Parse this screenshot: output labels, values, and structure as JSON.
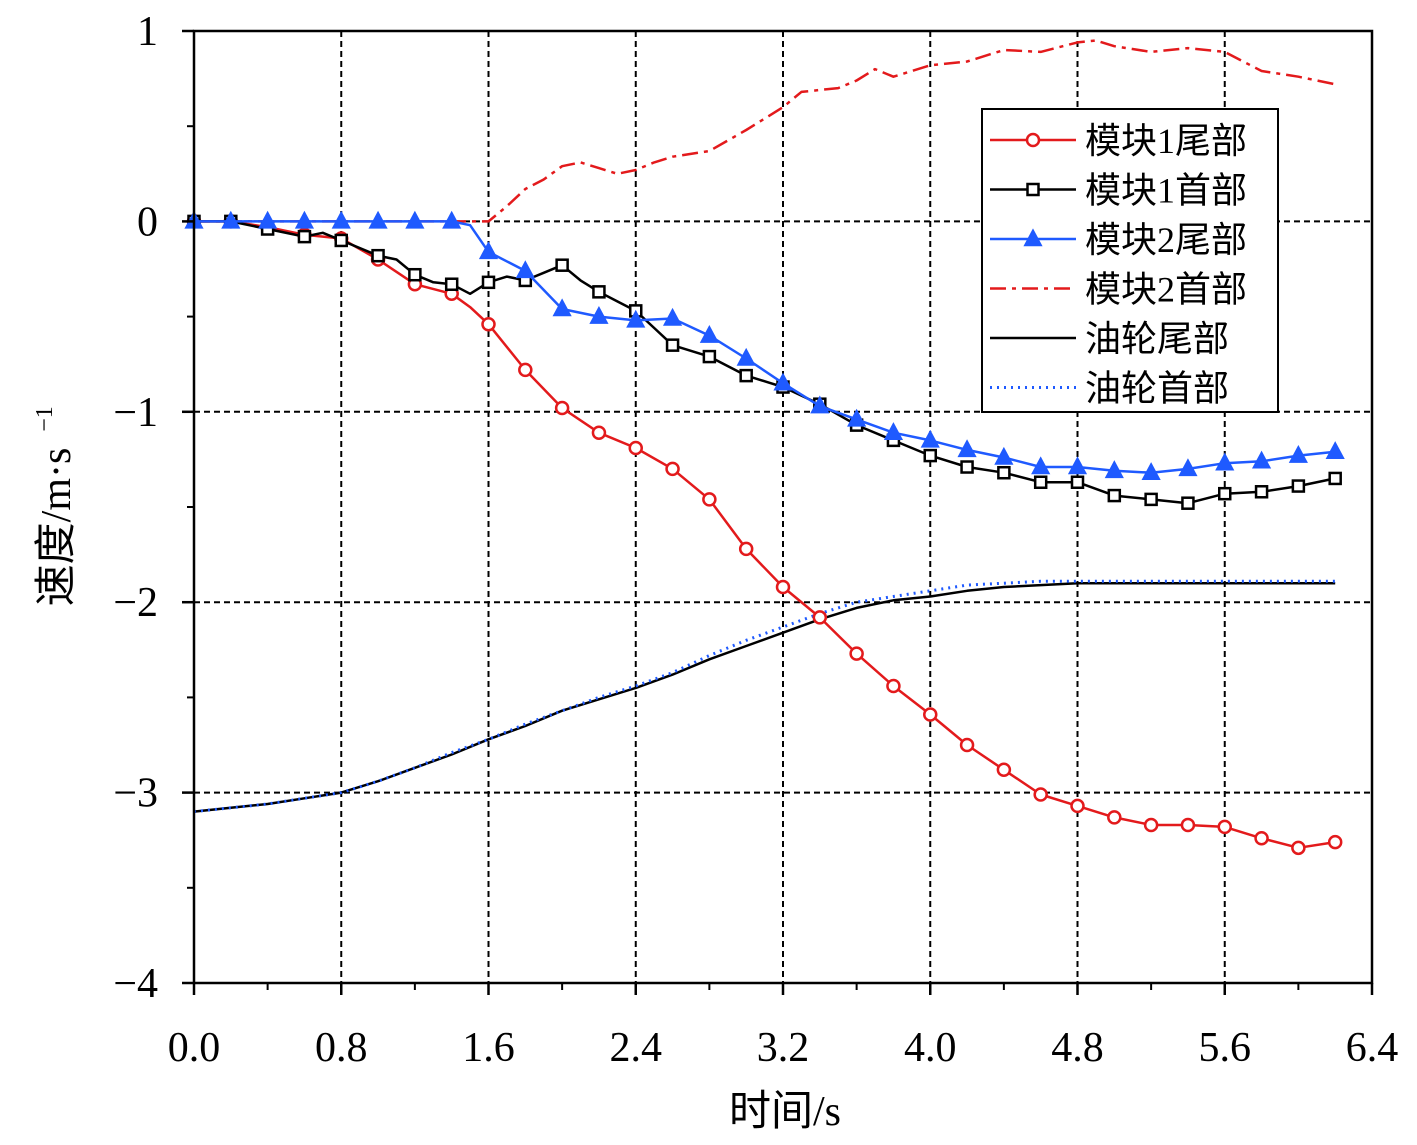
{
  "chart_data": {
    "type": "line",
    "title": "",
    "xlabel": "时间/s",
    "ylabel_main": "速度/m·s",
    "ylabel_sup": "−1",
    "xlim": [
      0,
      6.4
    ],
    "ylim": [
      -4,
      1
    ],
    "xticks": [
      0.0,
      0.8,
      1.6,
      2.4,
      3.2,
      4.0,
      4.8,
      5.6,
      6.4
    ],
    "xtick_labels": [
      "0.0",
      "0.8",
      "1.6",
      "2.4",
      "3.2",
      "4.0",
      "4.8",
      "5.6",
      "6.4"
    ],
    "yticks": [
      1,
      0,
      -1,
      -2,
      -3,
      -4
    ],
    "ytick_labels": [
      "1",
      "0",
      "−1",
      "−2",
      "−3",
      "−4"
    ],
    "grid": true,
    "legend_position": "top-right",
    "series": [
      {
        "name": "模块1尾部",
        "color": "#e31a1c",
        "style": "solid",
        "marker": "circle",
        "points": [
          [
            0,
            0
          ],
          [
            0.2,
            0
          ],
          [
            0.4,
            -0.03
          ],
          [
            0.6,
            -0.07
          ],
          [
            0.8,
            -0.09
          ],
          [
            1.0,
            -0.2
          ],
          [
            1.2,
            -0.33
          ],
          [
            1.4,
            -0.38
          ],
          [
            1.5,
            -0.45
          ],
          [
            1.6,
            -0.54
          ],
          [
            1.8,
            -0.78
          ],
          [
            2.0,
            -0.98
          ],
          [
            2.2,
            -1.11
          ],
          [
            2.4,
            -1.19
          ],
          [
            2.6,
            -1.3
          ],
          [
            2.8,
            -1.46
          ],
          [
            3.0,
            -1.72
          ],
          [
            3.2,
            -1.92
          ],
          [
            3.4,
            -2.08
          ],
          [
            3.6,
            -2.27
          ],
          [
            3.8,
            -2.44
          ],
          [
            4.0,
            -2.59
          ],
          [
            4.2,
            -2.75
          ],
          [
            4.4,
            -2.88
          ],
          [
            4.6,
            -3.01
          ],
          [
            4.8,
            -3.07
          ],
          [
            5.0,
            -3.13
          ],
          [
            5.2,
            -3.17
          ],
          [
            5.4,
            -3.17
          ],
          [
            5.6,
            -3.18
          ],
          [
            5.8,
            -3.24
          ],
          [
            6.0,
            -3.29
          ],
          [
            6.2,
            -3.26
          ]
        ],
        "marker_x": [
          0,
          0.2,
          0.4,
          0.6,
          0.8,
          1.0,
          1.2,
          1.4,
          1.6,
          1.8,
          2.0,
          2.2,
          2.4,
          2.6,
          2.8,
          3.0,
          3.2,
          3.4,
          3.6,
          3.8,
          4.0,
          4.2,
          4.4,
          4.6,
          4.8,
          5.0,
          5.2,
          5.4,
          5.6,
          5.8,
          6.0,
          6.2
        ]
      },
      {
        "name": "模块1首部",
        "color": "#000000",
        "style": "solid",
        "marker": "square",
        "points": [
          [
            0,
            0
          ],
          [
            0.2,
            0
          ],
          [
            0.4,
            -0.04
          ],
          [
            0.6,
            -0.08
          ],
          [
            0.7,
            -0.06
          ],
          [
            0.8,
            -0.1
          ],
          [
            1.0,
            -0.18
          ],
          [
            1.1,
            -0.2
          ],
          [
            1.2,
            -0.28
          ],
          [
            1.3,
            -0.32
          ],
          [
            1.4,
            -0.33
          ],
          [
            1.5,
            -0.38
          ],
          [
            1.6,
            -0.32
          ],
          [
            1.7,
            -0.29
          ],
          [
            1.8,
            -0.31
          ],
          [
            1.9,
            -0.27
          ],
          [
            2.0,
            -0.23
          ],
          [
            2.1,
            -0.31
          ],
          [
            2.2,
            -0.37
          ],
          [
            2.3,
            -0.42
          ],
          [
            2.4,
            -0.47
          ],
          [
            2.5,
            -0.56
          ],
          [
            2.6,
            -0.65
          ],
          [
            2.8,
            -0.71
          ],
          [
            3.0,
            -0.81
          ],
          [
            3.2,
            -0.87
          ],
          [
            3.4,
            -0.96
          ],
          [
            3.6,
            -1.07
          ],
          [
            3.8,
            -1.15
          ],
          [
            4.0,
            -1.23
          ],
          [
            4.2,
            -1.29
          ],
          [
            4.4,
            -1.32
          ],
          [
            4.6,
            -1.37
          ],
          [
            4.8,
            -1.37
          ],
          [
            5.0,
            -1.44
          ],
          [
            5.2,
            -1.46
          ],
          [
            5.4,
            -1.48
          ],
          [
            5.6,
            -1.43
          ],
          [
            5.8,
            -1.42
          ],
          [
            6.0,
            -1.39
          ],
          [
            6.2,
            -1.35
          ]
        ],
        "marker_x": [
          0,
          0.2,
          0.4,
          0.6,
          0.8,
          1.0,
          1.2,
          1.4,
          1.6,
          1.8,
          2.0,
          2.2,
          2.4,
          2.6,
          2.8,
          3.0,
          3.2,
          3.4,
          3.6,
          3.8,
          4.0,
          4.2,
          4.4,
          4.6,
          4.8,
          5.0,
          5.2,
          5.4,
          5.6,
          5.8,
          6.0,
          6.2
        ]
      },
      {
        "name": "模块2尾部",
        "color": "#1f5aff",
        "style": "solid",
        "marker": "triangle",
        "points": [
          [
            0,
            0
          ],
          [
            0.2,
            0
          ],
          [
            0.4,
            0
          ],
          [
            0.6,
            0
          ],
          [
            0.8,
            0
          ],
          [
            1.0,
            0
          ],
          [
            1.2,
            0
          ],
          [
            1.4,
            0
          ],
          [
            1.5,
            -0.02
          ],
          [
            1.6,
            -0.16
          ],
          [
            1.8,
            -0.26
          ],
          [
            2.0,
            -0.46
          ],
          [
            2.2,
            -0.5
          ],
          [
            2.4,
            -0.52
          ],
          [
            2.6,
            -0.51
          ],
          [
            2.8,
            -0.6
          ],
          [
            3.0,
            -0.72
          ],
          [
            3.2,
            -0.85
          ],
          [
            3.4,
            -0.97
          ],
          [
            3.6,
            -1.04
          ],
          [
            3.8,
            -1.11
          ],
          [
            4.0,
            -1.15
          ],
          [
            4.2,
            -1.2
          ],
          [
            4.4,
            -1.24
          ],
          [
            4.6,
            -1.29
          ],
          [
            4.8,
            -1.29
          ],
          [
            5.0,
            -1.31
          ],
          [
            5.2,
            -1.32
          ],
          [
            5.4,
            -1.3
          ],
          [
            5.6,
            -1.27
          ],
          [
            5.8,
            -1.26
          ],
          [
            6.0,
            -1.23
          ],
          [
            6.2,
            -1.21
          ]
        ],
        "marker_x": [
          0,
          0.2,
          0.4,
          0.6,
          0.8,
          1.0,
          1.2,
          1.4,
          1.6,
          1.8,
          2.0,
          2.2,
          2.4,
          2.6,
          2.8,
          3.0,
          3.2,
          3.4,
          3.6,
          3.8,
          4.0,
          4.2,
          4.4,
          4.6,
          4.8,
          5.0,
          5.2,
          5.4,
          5.6,
          5.8,
          6.0,
          6.2
        ]
      },
      {
        "name": "模块2首部",
        "color": "#e31a1c",
        "style": "dashdot",
        "marker": "none",
        "points": [
          [
            0,
            0
          ],
          [
            1.6,
            0
          ],
          [
            1.7,
            0.08
          ],
          [
            1.8,
            0.17
          ],
          [
            1.9,
            0.22
          ],
          [
            2.0,
            0.29
          ],
          [
            2.1,
            0.31
          ],
          [
            2.2,
            0.28
          ],
          [
            2.3,
            0.25
          ],
          [
            2.4,
            0.27
          ],
          [
            2.5,
            0.31
          ],
          [
            2.6,
            0.34
          ],
          [
            2.8,
            0.37
          ],
          [
            3.0,
            0.48
          ],
          [
            3.2,
            0.6
          ],
          [
            3.3,
            0.68
          ],
          [
            3.5,
            0.7
          ],
          [
            3.6,
            0.74
          ],
          [
            3.7,
            0.8
          ],
          [
            3.8,
            0.76
          ],
          [
            4.0,
            0.82
          ],
          [
            4.2,
            0.84
          ],
          [
            4.4,
            0.9
          ],
          [
            4.6,
            0.89
          ],
          [
            4.8,
            0.94
          ],
          [
            4.9,
            0.95
          ],
          [
            5.0,
            0.92
          ],
          [
            5.2,
            0.89
          ],
          [
            5.4,
            0.91
          ],
          [
            5.6,
            0.89
          ],
          [
            5.7,
            0.84
          ],
          [
            5.8,
            0.79
          ],
          [
            6.0,
            0.76
          ],
          [
            6.2,
            0.72
          ]
        ],
        "marker_x": []
      },
      {
        "name": "油轮尾部",
        "color": "#000000",
        "style": "solid",
        "marker": "none",
        "points": [
          [
            0,
            -3.1
          ],
          [
            0.2,
            -3.08
          ],
          [
            0.4,
            -3.06
          ],
          [
            0.6,
            -3.03
          ],
          [
            0.8,
            -3.0
          ],
          [
            1.0,
            -2.94
          ],
          [
            1.2,
            -2.87
          ],
          [
            1.4,
            -2.8
          ],
          [
            1.6,
            -2.72
          ],
          [
            1.8,
            -2.65
          ],
          [
            2.0,
            -2.57
          ],
          [
            2.2,
            -2.51
          ],
          [
            2.4,
            -2.45
          ],
          [
            2.6,
            -2.38
          ],
          [
            2.8,
            -2.3
          ],
          [
            3.0,
            -2.23
          ],
          [
            3.2,
            -2.16
          ],
          [
            3.4,
            -2.09
          ],
          [
            3.6,
            -2.03
          ],
          [
            3.8,
            -1.99
          ],
          [
            4.0,
            -1.97
          ],
          [
            4.2,
            -1.94
          ],
          [
            4.4,
            -1.92
          ],
          [
            4.6,
            -1.91
          ],
          [
            4.8,
            -1.9
          ],
          [
            5.0,
            -1.9
          ],
          [
            5.4,
            -1.9
          ],
          [
            5.8,
            -1.9
          ],
          [
            6.2,
            -1.9
          ]
        ],
        "marker_x": []
      },
      {
        "name": "油轮首部",
        "color": "#1f5aff",
        "style": "dotted",
        "marker": "none",
        "points": [
          [
            0,
            -3.1
          ],
          [
            0.2,
            -3.08
          ],
          [
            0.4,
            -3.06
          ],
          [
            0.6,
            -3.03
          ],
          [
            0.8,
            -3.0
          ],
          [
            1.0,
            -2.94
          ],
          [
            1.2,
            -2.87
          ],
          [
            1.4,
            -2.79
          ],
          [
            1.6,
            -2.72
          ],
          [
            1.8,
            -2.64
          ],
          [
            2.0,
            -2.57
          ],
          [
            2.2,
            -2.5
          ],
          [
            2.4,
            -2.44
          ],
          [
            2.6,
            -2.37
          ],
          [
            2.8,
            -2.28
          ],
          [
            3.0,
            -2.2
          ],
          [
            3.2,
            -2.13
          ],
          [
            3.4,
            -2.06
          ],
          [
            3.6,
            -2.0
          ],
          [
            3.8,
            -1.97
          ],
          [
            4.0,
            -1.94
          ],
          [
            4.2,
            -1.91
          ],
          [
            4.4,
            -1.9
          ],
          [
            4.6,
            -1.89
          ],
          [
            4.8,
            -1.89
          ],
          [
            5.0,
            -1.89
          ],
          [
            5.4,
            -1.89
          ],
          [
            5.8,
            -1.89
          ],
          [
            6.2,
            -1.89
          ]
        ],
        "marker_x": []
      }
    ]
  }
}
